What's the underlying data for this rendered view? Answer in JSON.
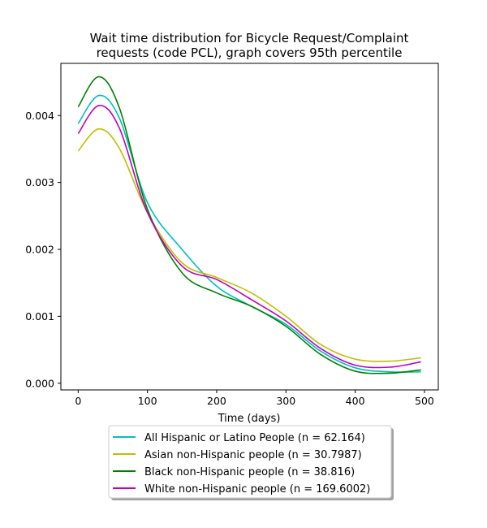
{
  "chart_data": {
    "type": "line",
    "title_lines": [
      "Wait time distribution  for Bicycle Request/Complaint",
      "requests (code PCL), graph covers 95th percentile"
    ],
    "xlabel": "Time (days)",
    "ylabel": "",
    "xlim": [
      -25,
      520
    ],
    "ylim": [
      -0.0001,
      0.00478
    ],
    "x_ticks": [
      0,
      100,
      200,
      300,
      400,
      500
    ],
    "x_tick_labels": [
      "0",
      "100",
      "200",
      "300",
      "400",
      "500"
    ],
    "y_ticks": [
      0,
      0.001,
      0.002,
      0.003,
      0.004
    ],
    "y_tick_labels": [
      "0.000",
      "0.001",
      "0.002",
      "0.003",
      "0.004"
    ],
    "grid": false,
    "legend_position": "below",
    "series": [
      {
        "name": "All Hispanic or Latino People (n = 62.164)",
        "color": "#00bfbf",
        "x": [
          0,
          30,
          60,
          100,
          150,
          200,
          250,
          300,
          350,
          400,
          450,
          495
        ],
        "y": [
          0.00388,
          0.0043,
          0.00395,
          0.0027,
          0.002,
          0.00145,
          0.00115,
          0.00088,
          0.00048,
          0.00023,
          0.00017,
          0.00017
        ]
      },
      {
        "name": "Asian non-Hispanic people (n = 30.7987)",
        "color": "#bfbf00",
        "x": [
          0,
          30,
          60,
          100,
          150,
          200,
          250,
          300,
          350,
          400,
          450,
          495
        ],
        "y": [
          0.00347,
          0.0038,
          0.0035,
          0.00255,
          0.0018,
          0.00158,
          0.00135,
          0.001,
          0.00058,
          0.00036,
          0.00033,
          0.00038
        ]
      },
      {
        "name": "Black non-Hispanic people (n = 38.816)",
        "color": "#008000",
        "x": [
          0,
          30,
          60,
          100,
          150,
          200,
          250,
          300,
          350,
          400,
          450,
          495
        ],
        "y": [
          0.00413,
          0.00458,
          0.0041,
          0.0026,
          0.00165,
          0.00135,
          0.00115,
          0.00085,
          0.00043,
          0.00018,
          0.00015,
          0.0002
        ]
      },
      {
        "name": "White non-Hispanic people (n = 169.6002)",
        "color": "#bf00bf",
        "x": [
          0,
          30,
          60,
          100,
          150,
          200,
          250,
          300,
          350,
          400,
          450,
          495
        ],
        "y": [
          0.00373,
          0.00415,
          0.0038,
          0.00255,
          0.00175,
          0.00155,
          0.00125,
          0.00093,
          0.00052,
          0.00027,
          0.00024,
          0.00032
        ]
      }
    ]
  }
}
